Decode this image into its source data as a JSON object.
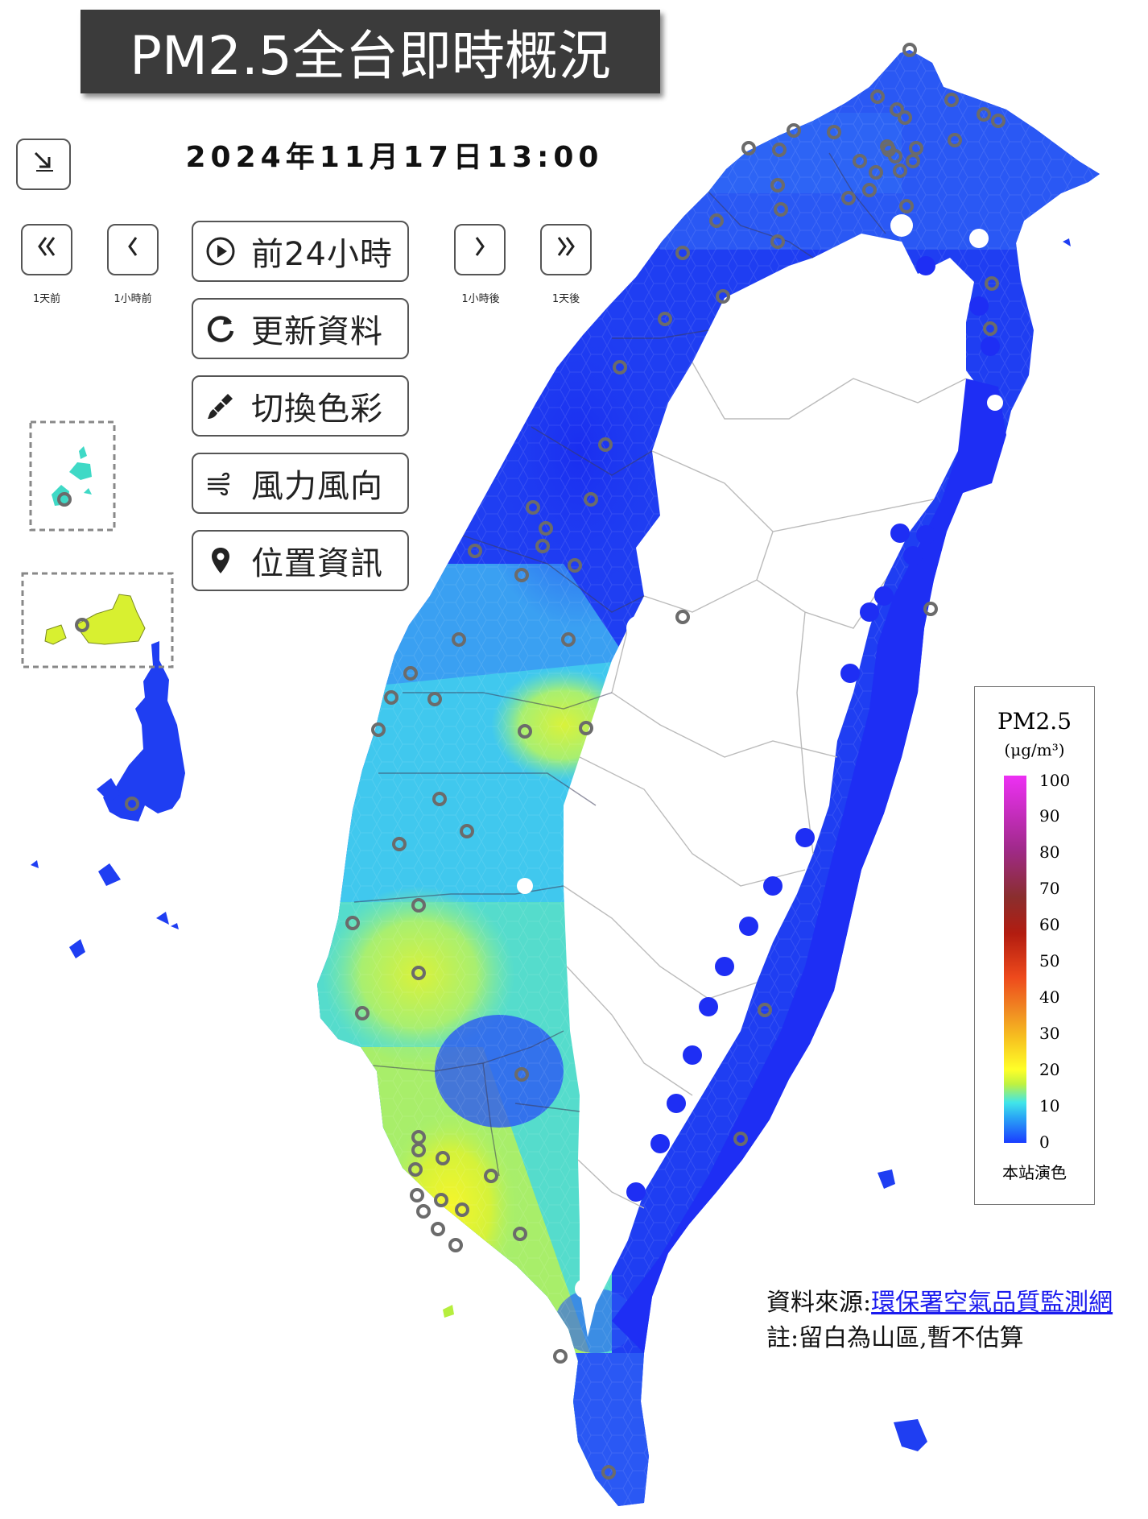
{
  "header": {
    "title": "PM2.5全台即時概況",
    "datetime": "2024年11月17日13:00"
  },
  "nav": {
    "collapse_icon": "arrow-down-right-icon",
    "day_back": {
      "icon": "double-chevron-left-icon",
      "caption": "1天前"
    },
    "hour_back": {
      "icon": "chevron-left-icon",
      "caption": "1小時前"
    },
    "hour_forward": {
      "icon": "chevron-right-icon",
      "caption": "1小時後"
    },
    "day_forward": {
      "icon": "double-chevron-right-icon",
      "caption": "1天後"
    }
  },
  "actions": [
    {
      "icon": "play-circle-icon",
      "label": "前24小時"
    },
    {
      "icon": "refresh-icon",
      "label": "更新資料"
    },
    {
      "icon": "paint-brush-icon",
      "label": "切換色彩"
    },
    {
      "icon": "wind-icon",
      "label": "風力風向"
    },
    {
      "icon": "map-pin-icon",
      "label": "位置資訊"
    }
  ],
  "legend": {
    "title": "PM2.5",
    "unit": "(μg/m³)",
    "ticks": [
      "100",
      "90",
      "80",
      "70",
      "60",
      "50",
      "40",
      "30",
      "20",
      "10",
      "0"
    ],
    "footer": "本站演色"
  },
  "notes": {
    "source_prefix": "資料來源:",
    "source_link": "環保署空氣品質監測網",
    "remark": "註:留白為山區,暫不估算"
  },
  "colors": {
    "low": "#1a3cff",
    "mid_low": "#2aa7f5",
    "cyan": "#41e6e9",
    "yellow_green": "#c8f23a",
    "yellow": "#ffff28",
    "station_ring": "#6b6b6b"
  }
}
